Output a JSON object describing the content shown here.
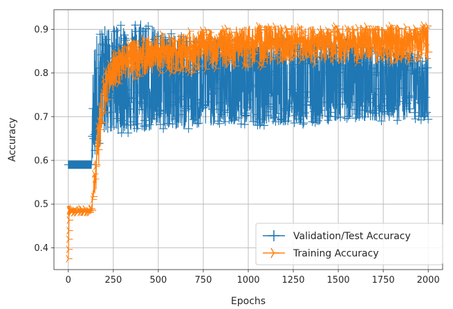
{
  "chart_data": {
    "type": "line",
    "title": "",
    "xlabel": "Epochs",
    "ylabel": "Accuracy",
    "xlim": [
      -80,
      2080
    ],
    "ylim": [
      0.35,
      0.945
    ],
    "xticks": [
      0,
      250,
      500,
      750,
      1000,
      1250,
      1500,
      1750,
      2000
    ],
    "yticks": [
      0.4,
      0.5,
      0.6,
      0.7,
      0.8,
      0.9
    ],
    "grid": true,
    "legend_position": "lower-right",
    "series": [
      {
        "name": "Validation/Test Accuracy",
        "color": "#1f77b4",
        "marker": "+",
        "x": [
          0,
          130,
          135,
          150,
          175,
          200,
          250,
          300,
          350,
          400,
          500,
          600,
          700,
          800,
          900,
          1000,
          1100,
          1200,
          1300,
          1400,
          1500,
          1600,
          1700,
          1800,
          1900,
          2000
        ],
        "upper": [
          0.59,
          0.59,
          0.8,
          0.88,
          0.9,
          0.91,
          0.91,
          0.91,
          0.91,
          0.93,
          0.9,
          0.89,
          0.88,
          0.88,
          0.88,
          0.88,
          0.88,
          0.88,
          0.87,
          0.87,
          0.87,
          0.87,
          0.86,
          0.86,
          0.85,
          0.85
        ],
        "lower": [
          0.59,
          0.59,
          0.6,
          0.62,
          0.64,
          0.66,
          0.66,
          0.66,
          0.66,
          0.66,
          0.67,
          0.67,
          0.67,
          0.68,
          0.68,
          0.68,
          0.68,
          0.68,
          0.68,
          0.68,
          0.69,
          0.69,
          0.69,
          0.69,
          0.69,
          0.69
        ],
        "center": [
          0.59,
          0.59,
          0.7,
          0.75,
          0.78,
          0.8,
          0.8,
          0.8,
          0.8,
          0.79,
          0.78,
          0.78,
          0.78,
          0.78,
          0.78,
          0.78,
          0.78,
          0.78,
          0.78,
          0.78,
          0.78,
          0.78,
          0.78,
          0.78,
          0.78,
          0.78
        ]
      },
      {
        "name": "Training Accuracy",
        "color": "#ff7f0e",
        "marker": "4",
        "x": [
          0,
          5,
          10,
          120,
          130,
          150,
          175,
          200,
          250,
          300,
          400,
          500,
          600,
          700,
          800,
          1000,
          1200,
          1400,
          1600,
          1800,
          2000
        ],
        "upper": [
          0.38,
          0.49,
          0.49,
          0.49,
          0.5,
          0.62,
          0.75,
          0.8,
          0.85,
          0.87,
          0.88,
          0.89,
          0.89,
          0.9,
          0.9,
          0.91,
          0.91,
          0.91,
          0.91,
          0.91,
          0.91
        ],
        "lower": [
          0.37,
          0.48,
          0.48,
          0.48,
          0.48,
          0.5,
          0.6,
          0.7,
          0.76,
          0.78,
          0.79,
          0.8,
          0.8,
          0.8,
          0.81,
          0.81,
          0.82,
          0.82,
          0.82,
          0.82,
          0.83
        ],
        "center": [
          0.375,
          0.485,
          0.485,
          0.485,
          0.49,
          0.56,
          0.68,
          0.76,
          0.81,
          0.83,
          0.84,
          0.845,
          0.85,
          0.855,
          0.86,
          0.865,
          0.865,
          0.87,
          0.87,
          0.875,
          0.875
        ]
      }
    ]
  }
}
